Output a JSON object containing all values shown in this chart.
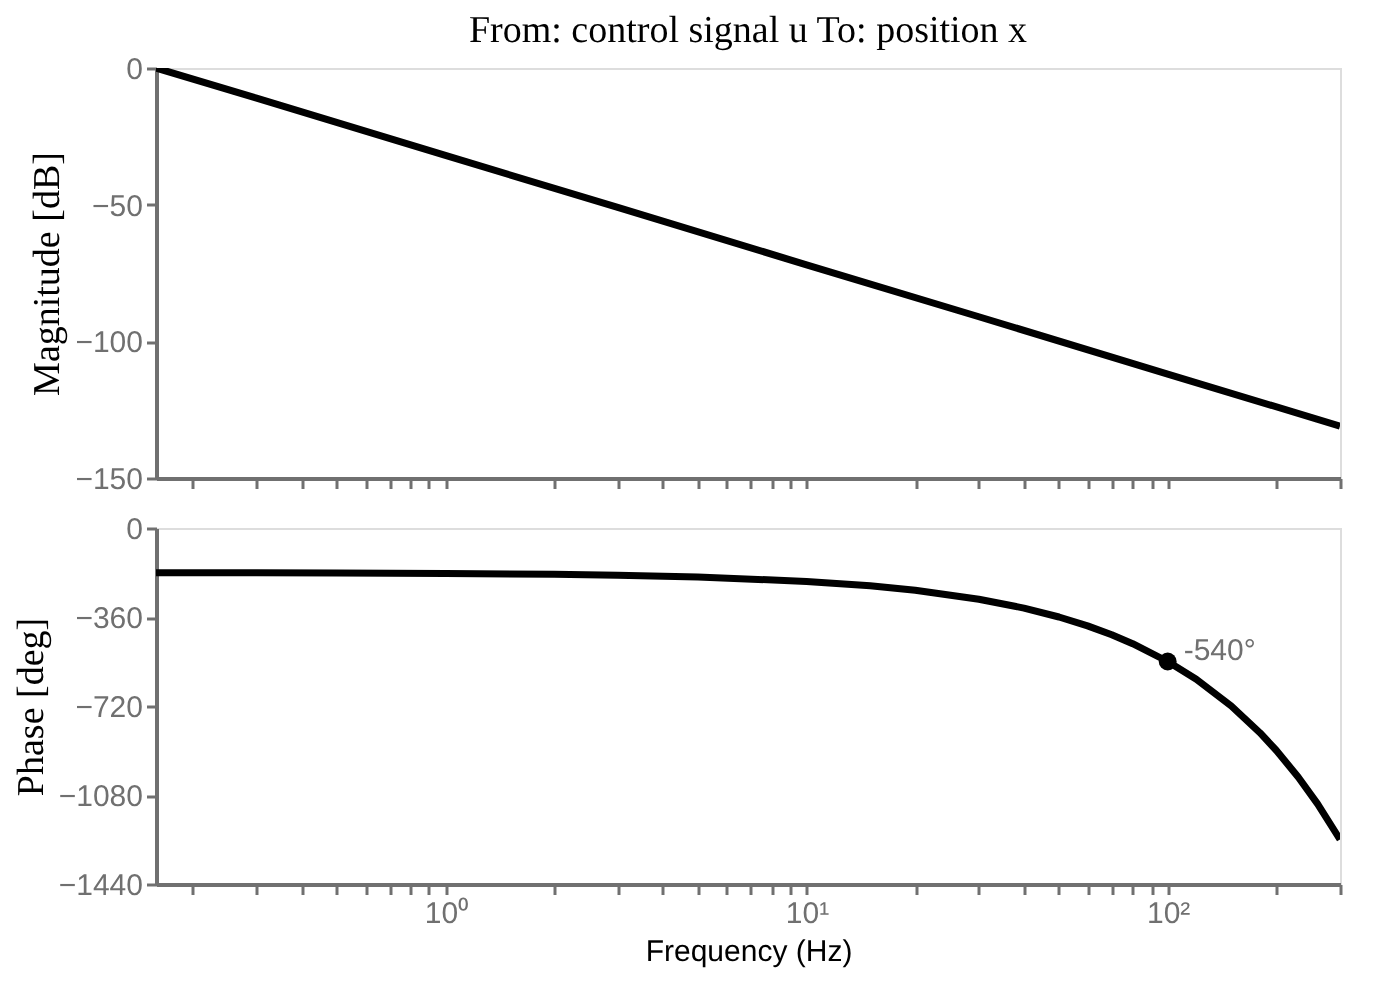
{
  "chart_data": [
    {
      "type": "line",
      "title": "From: control signal u   To: position x",
      "ylabel": "Magnitude [dB]",
      "log": "x",
      "grid": false,
      "marker": "none",
      "line_style": "solid",
      "tick_labels": "y",
      "x": [
        0.158,
        0.3,
        1,
        3,
        10,
        30,
        100,
        300
      ],
      "series": [
        {
          "color": "#000000",
          "values": [
            0,
            -11,
            -32,
            -51,
            -72,
            -91,
            -112,
            -131
          ]
        }
      ],
      "xlim": [
        0.158,
        300
      ],
      "xticks": [
        {
          "value": 0.2,
          "label": null
        },
        {
          "value": 0.3,
          "label": null
        },
        {
          "value": 0.4,
          "label": null
        },
        {
          "value": 0.5,
          "label": null
        },
        {
          "value": 0.6,
          "label": null
        },
        {
          "value": 0.7,
          "label": null
        },
        {
          "value": 0.8,
          "label": null
        },
        {
          "value": 0.9,
          "label": null
        },
        {
          "value": 1,
          "label": null
        },
        {
          "value": 2,
          "label": null
        },
        {
          "value": 3,
          "label": null
        },
        {
          "value": 4,
          "label": null
        },
        {
          "value": 5,
          "label": null
        },
        {
          "value": 6,
          "label": null
        },
        {
          "value": 7,
          "label": null
        },
        {
          "value": 8,
          "label": null
        },
        {
          "value": 9,
          "label": null
        },
        {
          "value": 10,
          "label": null
        },
        {
          "value": 20,
          "label": null
        },
        {
          "value": 30,
          "label": null
        },
        {
          "value": 40,
          "label": null
        },
        {
          "value": 50,
          "label": null
        },
        {
          "value": 60,
          "label": null
        },
        {
          "value": 70,
          "label": null
        },
        {
          "value": 80,
          "label": null
        },
        {
          "value": 90,
          "label": null
        },
        {
          "value": 100,
          "label": null
        },
        {
          "value": 200,
          "label": null
        },
        {
          "value": 300,
          "label": null
        }
      ],
      "ylim": [
        -150,
        0
      ],
      "yticks": [
        0,
        {
          "value": -50,
          "label": "−50"
        },
        {
          "value": -100,
          "label": "−100"
        },
        {
          "value": -150,
          "label": "−150"
        }
      ]
    },
    {
      "type": "line",
      "xlabel": "Frequency  (Hz)",
      "ylabel": "Phase [deg]",
      "log": "x",
      "grid": false,
      "marker": "none",
      "line_style": "solid",
      "x": [
        0.158,
        0.3,
        0.5,
        1,
        2,
        3,
        5,
        10,
        15,
        20,
        30,
        40,
        50,
        60,
        70,
        80,
        100,
        120,
        150,
        180,
        200,
        230,
        260,
        300
      ],
      "series": [
        {
          "color": "#000000",
          "values": [
            -181,
            -181,
            -182,
            -184,
            -187,
            -191,
            -198,
            -216,
            -234,
            -252,
            -288,
            -324,
            -360,
            -396,
            -432,
            -468,
            -540,
            -612,
            -720,
            -828,
            -900,
            -1008,
            -1116,
            -1260
          ]
        }
      ],
      "annotations": [
        {
          "text": "-540°",
          "x": 100,
          "y": -540
        }
      ],
      "xlim": [
        0.158,
        300
      ],
      "xticks": [
        {
          "value": 0.2,
          "label": null
        },
        {
          "value": 0.3,
          "label": null
        },
        {
          "value": 0.4,
          "label": null
        },
        {
          "value": 0.5,
          "label": null
        },
        {
          "value": 0.6,
          "label": null
        },
        {
          "value": 0.7,
          "label": null
        },
        {
          "value": 0.8,
          "label": null
        },
        {
          "value": 0.9,
          "label": null
        },
        {
          "value": 1,
          "label": "10⁰"
        },
        {
          "value": 2,
          "label": null
        },
        {
          "value": 3,
          "label": null
        },
        {
          "value": 4,
          "label": null
        },
        {
          "value": 5,
          "label": null
        },
        {
          "value": 6,
          "label": null
        },
        {
          "value": 7,
          "label": null
        },
        {
          "value": 8,
          "label": null
        },
        {
          "value": 9,
          "label": null
        },
        {
          "value": 10,
          "label": "10¹"
        },
        {
          "value": 20,
          "label": null
        },
        {
          "value": 30,
          "label": null
        },
        {
          "value": 40,
          "label": null
        },
        {
          "value": 50,
          "label": null
        },
        {
          "value": 60,
          "label": null
        },
        {
          "value": 70,
          "label": null
        },
        {
          "value": 80,
          "label": null
        },
        {
          "value": 90,
          "label": null
        },
        {
          "value": 100,
          "label": "10²"
        },
        {
          "value": 200,
          "label": null
        },
        {
          "value": 300,
          "label": null
        }
      ],
      "ylim": [
        -1440,
        0
      ],
      "yticks": [
        0,
        {
          "value": -360,
          "label": "−360"
        },
        {
          "value": -720,
          "label": "−720"
        },
        {
          "value": -1080,
          "label": "−1080"
        },
        {
          "value": -1440,
          "label": "−1440"
        }
      ]
    }
  ]
}
